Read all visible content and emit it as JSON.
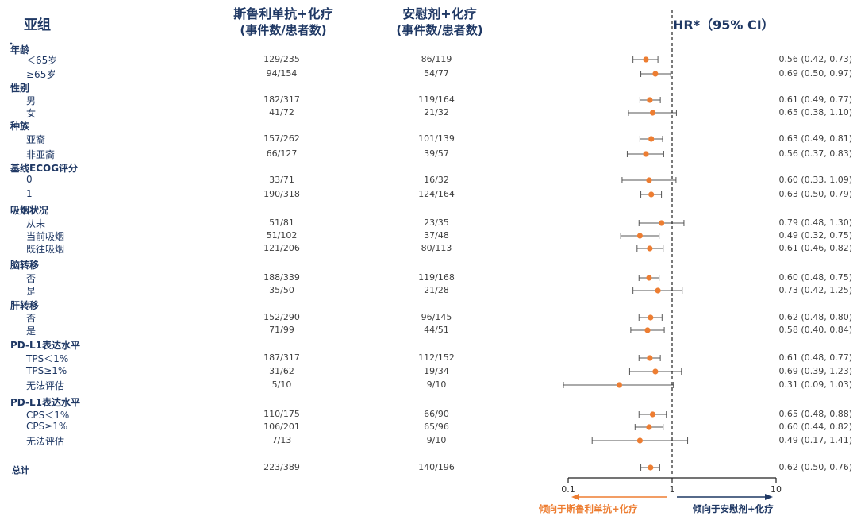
{
  "header": {
    "subgroup": "亚组",
    "arm1_line1": "斯鲁利单抗+化疗",
    "arm1_line2": "(事件数/患者数)",
    "arm2_line1": "安慰剂+化疗",
    "arm2_line2": "(事件数/患者数)",
    "hr": "HR*（95% CI）"
  },
  "colors": {
    "navy": "#1f3864",
    "orange": "#ed7d31",
    "line": "#555555"
  },
  "chart_data": {
    "type": "forest",
    "x_scale": "log",
    "xlim": [
      0.1,
      10
    ],
    "reference_line": 1,
    "ticks": [
      "0.1",
      "1",
      "10"
    ],
    "arrow_left_label": "倾向于斯鲁利单抗+化疗",
    "arrow_right_label": "倾向于安慰剂+化疗",
    "rows": [
      {
        "kind": "group",
        "label": "年龄"
      },
      {
        "kind": "item",
        "label": "＜65岁",
        "arm1": "129/235",
        "arm2": "86/119",
        "hr": 0.56,
        "lo": 0.42,
        "hi": 0.73,
        "ci_text": "0.56 (0.42, 0.73)"
      },
      {
        "kind": "item",
        "label": "≥65岁",
        "arm1": "94/154",
        "arm2": "54/77",
        "hr": 0.69,
        "lo": 0.5,
        "hi": 0.97,
        "ci_text": "0.69 (0.50, 0.97)"
      },
      {
        "kind": "group",
        "label": "性别"
      },
      {
        "kind": "item",
        "label": "男",
        "arm1": "182/317",
        "arm2": "119/164",
        "hr": 0.61,
        "lo": 0.49,
        "hi": 0.77,
        "ci_text": "0.61 (0.49, 0.77)"
      },
      {
        "kind": "item",
        "label": "女",
        "arm1": "41/72",
        "arm2": "21/32",
        "hr": 0.65,
        "lo": 0.38,
        "hi": 1.1,
        "ci_text": "0.65 (0.38, 1.10)"
      },
      {
        "kind": "group",
        "label": "种族"
      },
      {
        "kind": "item",
        "label": "亚裔",
        "arm1": "157/262",
        "arm2": "101/139",
        "hr": 0.63,
        "lo": 0.49,
        "hi": 0.81,
        "ci_text": "0.63 (0.49, 0.81)"
      },
      {
        "kind": "item",
        "label": "非亚裔",
        "arm1": "66/127",
        "arm2": "39/57",
        "hr": 0.56,
        "lo": 0.37,
        "hi": 0.83,
        "ci_text": "0.56 (0.37, 0.83)"
      },
      {
        "kind": "group",
        "label": "基线ECOG评分"
      },
      {
        "kind": "item",
        "label": "0",
        "arm1": "33/71",
        "arm2": "16/32",
        "hr": 0.6,
        "lo": 0.33,
        "hi": 1.09,
        "ci_text": "0.60 (0.33, 1.09)"
      },
      {
        "kind": "item",
        "label": "1",
        "arm1": "190/318",
        "arm2": "124/164",
        "hr": 0.63,
        "lo": 0.5,
        "hi": 0.79,
        "ci_text": "0.63 (0.50, 0.79)"
      },
      {
        "kind": "group",
        "label": "吸烟状况"
      },
      {
        "kind": "item",
        "label": "从未",
        "arm1": "51/81",
        "arm2": "23/35",
        "hr": 0.79,
        "lo": 0.48,
        "hi": 1.3,
        "ci_text": "0.79 (0.48, 1.30)"
      },
      {
        "kind": "item",
        "label": "当前吸烟",
        "arm1": "51/102",
        "arm2": "37/48",
        "hr": 0.49,
        "lo": 0.32,
        "hi": 0.75,
        "ci_text": "0.49 (0.32, 0.75)"
      },
      {
        "kind": "item",
        "label": "既往吸烟",
        "arm1": "121/206",
        "arm2": "80/113",
        "hr": 0.61,
        "lo": 0.46,
        "hi": 0.82,
        "ci_text": "0.61 (0.46, 0.82)"
      },
      {
        "kind": "group",
        "label": "脑转移"
      },
      {
        "kind": "item",
        "label": "否",
        "arm1": "188/339",
        "arm2": "119/168",
        "hr": 0.6,
        "lo": 0.48,
        "hi": 0.75,
        "ci_text": "0.60 (0.48, 0.75)"
      },
      {
        "kind": "item",
        "label": "是",
        "arm1": "35/50",
        "arm2": "21/28",
        "hr": 0.73,
        "lo": 0.42,
        "hi": 1.25,
        "ci_text": "0.73 (0.42, 1.25)"
      },
      {
        "kind": "group",
        "label": "肝转移"
      },
      {
        "kind": "item",
        "label": "否",
        "arm1": "152/290",
        "arm2": "96/145",
        "hr": 0.62,
        "lo": 0.48,
        "hi": 0.8,
        "ci_text": "0.62 (0.48, 0.80)"
      },
      {
        "kind": "item",
        "label": "是",
        "arm1": "71/99",
        "arm2": "44/51",
        "hr": 0.58,
        "lo": 0.4,
        "hi": 0.84,
        "ci_text": "0.58 (0.40, 0.84)"
      },
      {
        "kind": "group",
        "label": "PD-L1表达水平"
      },
      {
        "kind": "item",
        "label": "TPS＜1%",
        "arm1": "187/317",
        "arm2": "112/152",
        "hr": 0.61,
        "lo": 0.48,
        "hi": 0.77,
        "ci_text": "0.61 (0.48, 0.77)"
      },
      {
        "kind": "item",
        "label": "TPS≥1%",
        "arm1": "31/62",
        "arm2": "19/34",
        "hr": 0.69,
        "lo": 0.39,
        "hi": 1.23,
        "ci_text": "0.69 (0.39, 1.23)"
      },
      {
        "kind": "item",
        "label": "无法评估",
        "arm1": "5/10",
        "arm2": "9/10",
        "hr": 0.31,
        "lo": 0.09,
        "hi": 1.03,
        "ci_text": "0.31 (0.09, 1.03)"
      },
      {
        "kind": "group",
        "label": "PD-L1表达水平"
      },
      {
        "kind": "item",
        "label": "CPS＜1%",
        "arm1": "110/175",
        "arm2": "66/90",
        "hr": 0.65,
        "lo": 0.48,
        "hi": 0.88,
        "ci_text": "0.65 (0.48, 0.88)"
      },
      {
        "kind": "item",
        "label": "CPS≥1%",
        "arm1": "106/201",
        "arm2": "65/96",
        "hr": 0.6,
        "lo": 0.44,
        "hi": 0.82,
        "ci_text": "0.60 (0.44, 0.82)"
      },
      {
        "kind": "item",
        "label": "无法评估",
        "arm1": "7/13",
        "arm2": "9/10",
        "hr": 0.49,
        "lo": 0.17,
        "hi": 1.41,
        "ci_text": "0.49 (0.17, 1.41)"
      },
      {
        "kind": "total",
        "label": "总计",
        "arm1": "223/389",
        "arm2": "140/196",
        "hr": 0.62,
        "lo": 0.5,
        "hi": 0.76,
        "ci_text": "0.62 (0.50, 0.76)"
      }
    ]
  }
}
